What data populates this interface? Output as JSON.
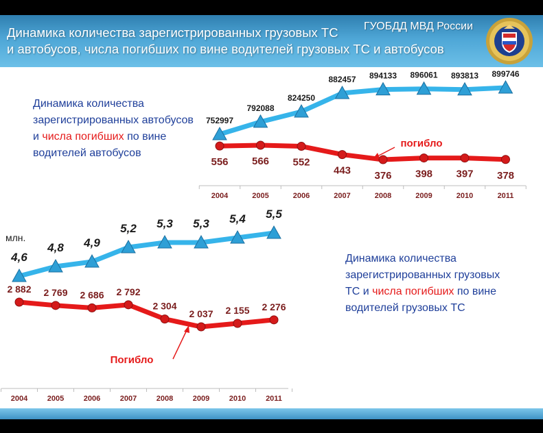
{
  "header": {
    "title_line1": "Динамика количества зарегистрированных грузовых  ТС",
    "title_line2": "и автобусов, числа погибших по вине водителей грузовых  ТС  и автобусов",
    "agency": "ГУОБДД МВД России",
    "emblem_icon": "police-emblem-icon"
  },
  "captions": {
    "bus": {
      "part1": "Динамика количества зарегистрированных автобусов и ",
      "red1": "числа погибших",
      "part2": " по вине водителей автобусов"
    },
    "truck": {
      "part1": "Динамика количества зарегистрированных грузовых ТС и ",
      "red1": "числа погибших",
      "part2": " по вине водителей грузовых ТС"
    }
  },
  "colors": {
    "registered": "#36b4ea",
    "deaths": "#e51a1a",
    "caption_blue": "#1f3f9a",
    "death_label": "#7a1d1d",
    "axis_label": "#7a1d1d"
  },
  "chart_data": [
    {
      "type": "line",
      "title": "",
      "categories": [
        "2004",
        "2005",
        "2006",
        "2007",
        "2008",
        "2009",
        "2010",
        "2011"
      ],
      "series": [
        {
          "values": [
            752997,
            792088,
            824250,
            882457,
            894133,
            896061,
            893813,
            899746
          ],
          "labels": [
            "752997",
            "792088",
            "824250",
            "882457",
            "894133",
            "896061",
            "893813",
            "899746"
          ],
          "marker": "triangle"
        },
        {
          "name": "погибло",
          "values": [
            556,
            566,
            552,
            443,
            376,
            398,
            397,
            378
          ],
          "labels": [
            "556",
            "566",
            "552",
            "443",
            "376",
            "398",
            "397",
            "378"
          ],
          "marker": "circle"
        }
      ],
      "annotation": "погибло",
      "grid": false
    },
    {
      "type": "line",
      "title": "",
      "categories": [
        "2004",
        "2005",
        "2006",
        "2007",
        "2008",
        "2009",
        "2010",
        "2011"
      ],
      "unit_label": "млн.",
      "series": [
        {
          "values": [
            4.6,
            4.8,
            4.9,
            5.2,
            5.3,
            5.3,
            5.4,
            5.5
          ],
          "labels": [
            "4,6",
            "4,8",
            "4,9",
            "5,2",
            "5,3",
            "5,3",
            "5,4",
            "5,5"
          ],
          "marker": "triangle"
        },
        {
          "name": "Погибло",
          "values": [
            2882,
            2769,
            2686,
            2792,
            2304,
            2037,
            2155,
            2276
          ],
          "labels": [
            "2 882",
            "2 769",
            "2 686",
            "2 792",
            "2 304",
            "2 037",
            "2 155",
            "2 276"
          ],
          "marker": "circle"
        }
      ],
      "annotation": "Погибло",
      "grid": false
    }
  ]
}
